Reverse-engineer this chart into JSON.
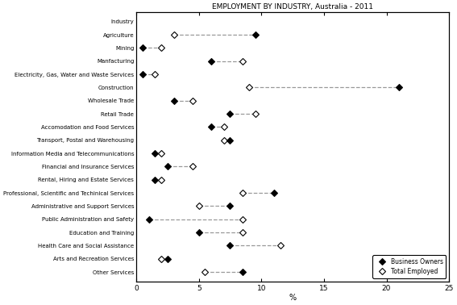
{
  "title": "EMPLOYMENT BY INDUSTRY, Australia - 2011",
  "industries": [
    "Industry",
    "Agriculture",
    "Mining",
    "Manfacturing",
    "Electricity, Gas, Water and Waste Services",
    "Construction",
    "Wholesale Trade",
    "Retail Trade",
    "Accomodation and Food Services",
    "Transport, Postal and Warehousing",
    "Information Media and Telecommunications",
    "Financial and Insurance Services",
    "Rental, Hiring and Estate Services",
    "Professional, Scientific and Techinical Services",
    "Administrative and Support Services",
    "Public Administration and Safety",
    "Education and Training",
    "Health Care and Social Assistance",
    "Arts and Recreation Services",
    "Other Services"
  ],
  "business_owners": [
    null,
    9.5,
    0.5,
    6.0,
    0.5,
    21.0,
    3.0,
    7.5,
    6.0,
    7.5,
    1.5,
    2.5,
    1.5,
    11.0,
    7.5,
    1.0,
    5.0,
    7.5,
    2.5,
    8.5
  ],
  "total_employed": [
    null,
    3.0,
    2.0,
    8.5,
    1.5,
    9.0,
    4.5,
    9.5,
    7.0,
    7.0,
    2.0,
    4.5,
    2.0,
    8.5,
    5.0,
    8.5,
    8.5,
    11.5,
    2.0,
    5.5
  ],
  "xlim": [
    0,
    25
  ],
  "xticks": [
    0,
    5,
    10,
    15,
    20,
    25
  ],
  "xlabel": "%",
  "line_color": "#999999",
  "line_style": "--",
  "figsize": [
    5.67,
    3.78
  ],
  "dpi": 100,
  "markersize_bo": 4,
  "markersize_te": 4,
  "legend_fontsize": 5.5,
  "ytick_fontsize": 5.0,
  "xtick_fontsize": 6.5,
  "title_fontsize": 6.5
}
